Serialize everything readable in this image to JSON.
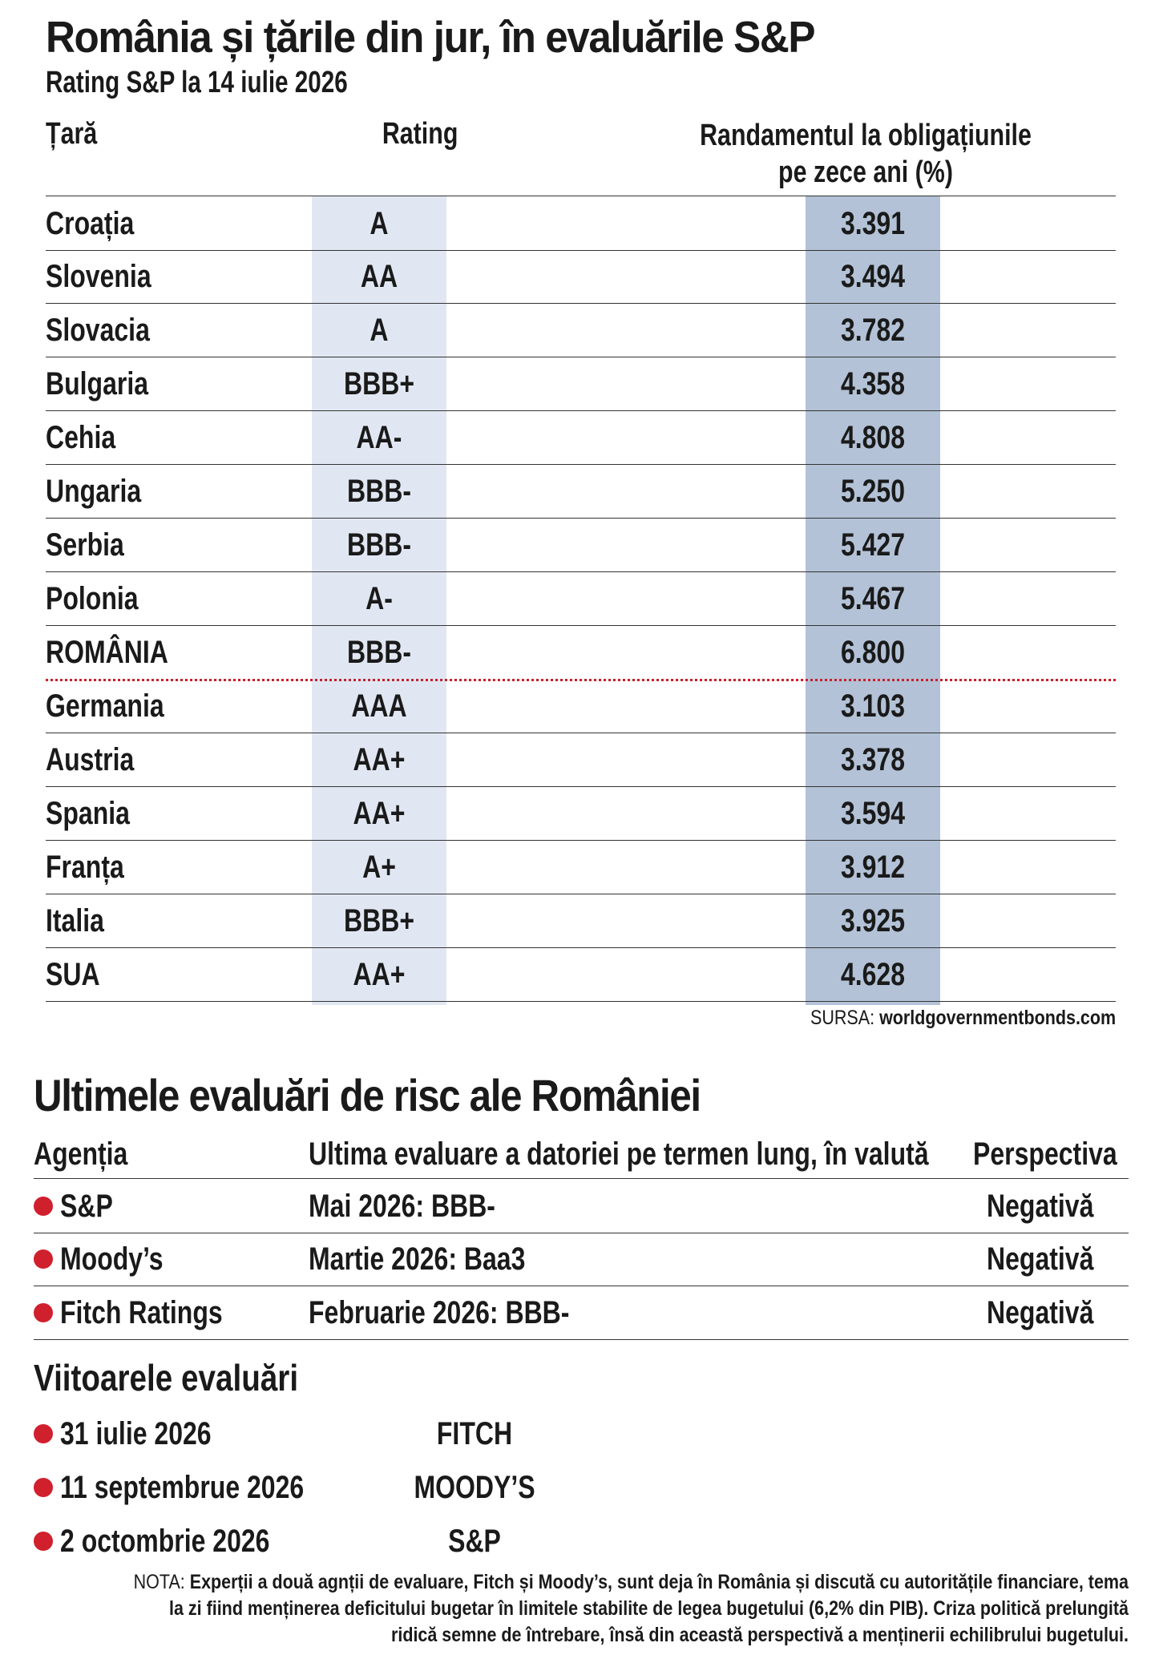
{
  "section1": {
    "title": "România și țările din jur, în evaluările S&P",
    "subtitle": "Rating S&P la 14 iulie 2026",
    "headers": {
      "country": "Țară",
      "rating": "Rating",
      "yield_line1": "Randamentul la obligațiunile",
      "yield_line2": "pe zece ani (%)"
    },
    "rows": [
      {
        "country": "Croația",
        "rating": "A",
        "yield": "3.391"
      },
      {
        "country": "Slovenia",
        "rating": "AA",
        "yield": "3.494"
      },
      {
        "country": "Slovacia",
        "rating": "A",
        "yield": "3.782"
      },
      {
        "country": "Bulgaria",
        "rating": "BBB+",
        "yield": "4.358"
      },
      {
        "country": "Cehia",
        "rating": "AA-",
        "yield": "4.808"
      },
      {
        "country": "Ungaria",
        "rating": "BBB-",
        "yield": "5.250"
      },
      {
        "country": "Serbia",
        "rating": "BBB-",
        "yield": "5.427"
      },
      {
        "country": "Polonia",
        "rating": "A-",
        "yield": "5.467"
      },
      {
        "country": "ROMÂNIA",
        "rating": "BBB-",
        "yield": "6.800"
      },
      {
        "country": "Germania",
        "rating": "AAA",
        "yield": "3.103"
      },
      {
        "country": "Austria",
        "rating": "AA+",
        "yield": "3.378"
      },
      {
        "country": "Spania",
        "rating": "AA+",
        "yield": "3.594"
      },
      {
        "country": "Franța",
        "rating": "A+",
        "yield": "3.912"
      },
      {
        "country": "Italia",
        "rating": "BBB+",
        "yield": "3.925"
      },
      {
        "country": "SUA",
        "rating": "AA+",
        "yield": "4.628"
      }
    ],
    "source_label": "SURSA:",
    "source_value": "worldgovernmentbonds.com"
  },
  "section2": {
    "title": "Ultimele evaluări de risc ale României",
    "headers": {
      "agency": "Agenția",
      "last": "Ultima evaluare a datoriei pe termen lung, în valută",
      "outlook": "Perspectiva"
    },
    "rows": [
      {
        "agency": "S&P",
        "last": "Mai 2026: BBB-",
        "outlook": "Negativă"
      },
      {
        "agency": "Moody’s",
        "last": "Martie 2026: Baa3",
        "outlook": "Negativă"
      },
      {
        "agency": "Fitch Ratings",
        "last": "Februarie 2026: BBB-",
        "outlook": "Negativă"
      }
    ]
  },
  "section3": {
    "title": "Viitoarele evaluări",
    "rows": [
      {
        "date": "31 iulie 2026",
        "agency": "FITCH"
      },
      {
        "date": "11 septembrue 2026",
        "agency": "MOODY’S"
      },
      {
        "date": "2 octombrie 2026",
        "agency": "S&P"
      }
    ]
  },
  "note": {
    "label": "NOTA:",
    "line1": "Experții a două agnții de evaluare, Fitch și Moody’s, sunt deja în România și discută cu autoritățile financiare, tema",
    "line2": "la zi fiind menținerea deficitului bugetar în limitele stabilite de legea bugetului (6,2% din PIB). Criza politică prelungită",
    "line3": "ridică semne de întrebare, însă din această perspectivă a menținerii echilibrului bugetului."
  },
  "colors": {
    "rating_column": "#e1e7f2",
    "yield_column": "#b3c2d6",
    "bullet": "#d0202e",
    "separator_dotted": "#c8202e"
  }
}
